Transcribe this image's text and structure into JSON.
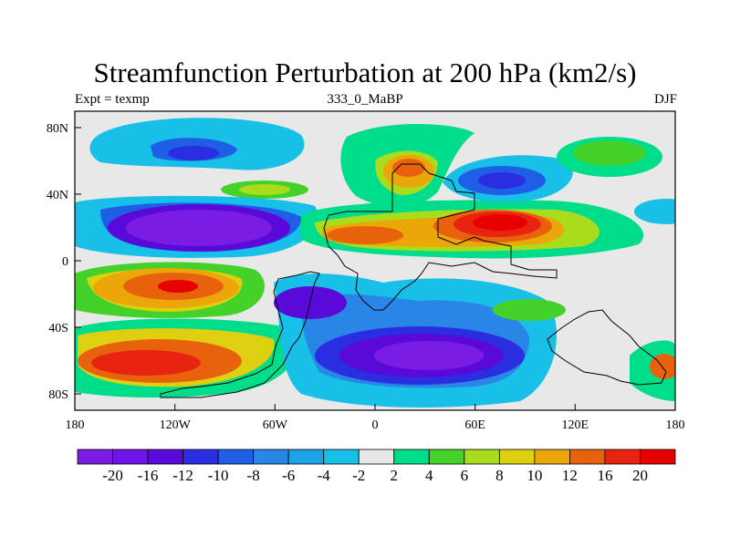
{
  "title": "Streamfunction Perturbation at 200 hPa (km2/s)",
  "left_label": "Expt = texmp",
  "center_label": "333_0_MaBP",
  "right_label": "DJF",
  "lat_ticks": [
    "80N",
    "40N",
    "0",
    "40S",
    "80S"
  ],
  "lon_ticks": [
    "180",
    "120W",
    "60W",
    "0",
    "60E",
    "120E",
    "180"
  ],
  "colorbar": {
    "labels": [
      "-20",
      "-16",
      "-12",
      "-10",
      "-8",
      "-6",
      "-4",
      "-2",
      "2",
      "4",
      "6",
      "8",
      "10",
      "12",
      "16",
      "20"
    ],
    "colors": [
      "#7a1ce3",
      "#6f12e6",
      "#5a0ad8",
      "#2a2ee0",
      "#1e5fe6",
      "#2a86e6",
      "#1ea2e6",
      "#18bfe6",
      "#e8e8e8",
      "#00dd8a",
      "#44d22a",
      "#a8dc1c",
      "#dcd010",
      "#eba60a",
      "#e8620e",
      "#e82410",
      "#e60000"
    ]
  },
  "colors": {
    "background": "#e8e8e8",
    "coast": "#000000"
  }
}
